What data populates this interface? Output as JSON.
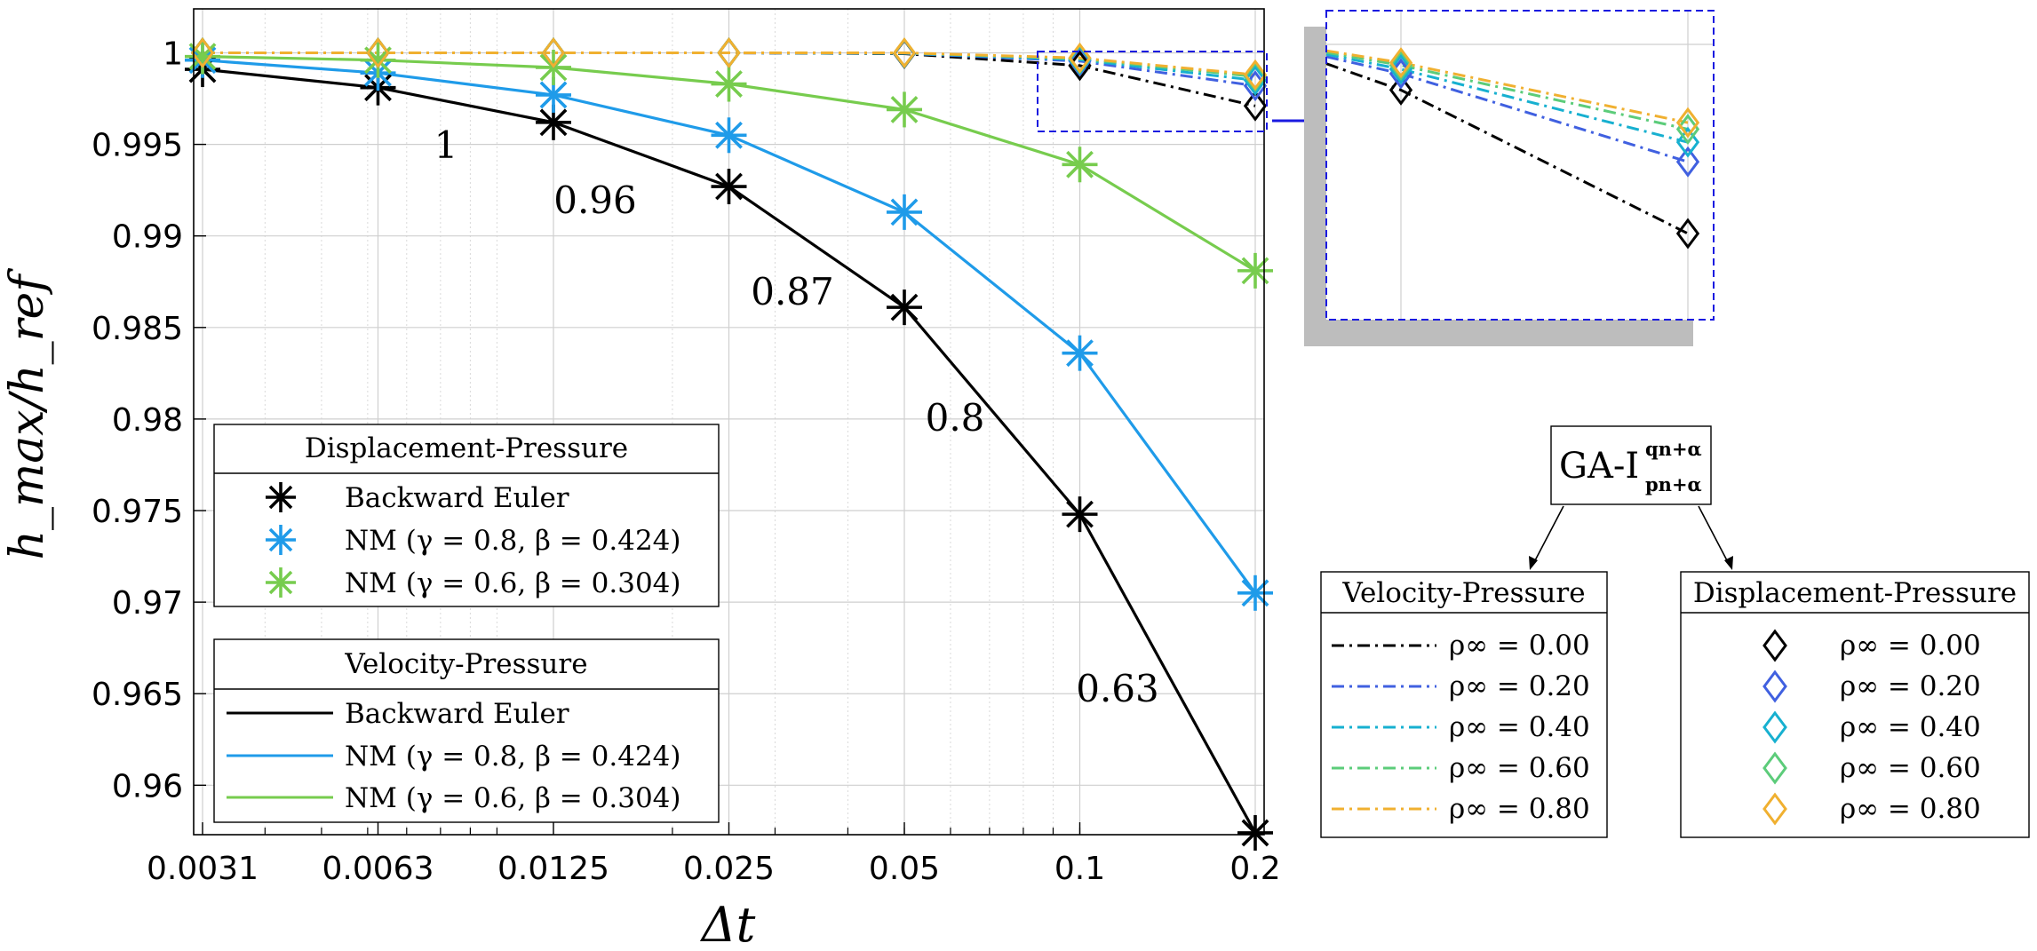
{
  "chart_data": {
    "type": "line",
    "xscale": "log",
    "xlabel": "Δt",
    "ylabel": "h_max/h_ref",
    "x_tick_labels": [
      "0.0031",
      "0.0063",
      "0.0125",
      "0.025",
      "0.05",
      "0.1",
      "0.2"
    ],
    "x": [
      0.003125,
      0.00625,
      0.0125,
      0.025,
      0.05,
      0.1,
      0.2
    ],
    "xlim": [
      0.003125,
      0.2
    ],
    "ylim": [
      0.9573,
      1.0024
    ],
    "y_tick_labels": [
      "1",
      "0.995",
      "0.99",
      "0.985",
      "0.98",
      "0.975",
      "0.97",
      "0.965",
      "0.96"
    ],
    "y_ticks": [
      1.0,
      0.995,
      0.99,
      0.985,
      0.98,
      0.975,
      0.97,
      0.965,
      0.96
    ],
    "grid": true,
    "series": [
      {
        "name": "Backward Euler",
        "group": "both",
        "color": "#000000",
        "marker": "asterisk",
        "values": [
          0.9991,
          0.9981,
          0.9962,
          0.9927,
          0.9861,
          0.9748,
          0.9574
        ]
      },
      {
        "name": "NM (γ = 0.8, β = 0.424)",
        "group": "both",
        "color": "#1f9be9",
        "marker": "asterisk",
        "values": [
          0.9996,
          0.9989,
          0.9977,
          0.9955,
          0.9913,
          0.9836,
          0.9705
        ]
      },
      {
        "name": "NM (γ = 0.6, β = 0.304)",
        "group": "both",
        "color": "#77cc4e",
        "marker": "asterisk",
        "values": [
          0.9998,
          0.9996,
          0.9992,
          0.9983,
          0.9969,
          0.9939,
          0.9881
        ]
      },
      {
        "name": "GA-I ρ∞ = 0.00",
        "group": "ga",
        "color": "#000000",
        "marker": "diamond",
        "values": [
          1.0,
          1.0,
          1.0,
          1.0,
          0.99995,
          0.9993,
          0.9971
        ]
      },
      {
        "name": "GA-I ρ∞ = 0.20",
        "group": "ga",
        "color": "#4060e0",
        "marker": "diamond",
        "values": [
          1.0,
          1.0,
          1.0,
          1.0,
          0.99997,
          0.99955,
          0.9982
        ]
      },
      {
        "name": "GA-I ρ∞ = 0.40",
        "group": "ga",
        "color": "#17b0d0",
        "marker": "diamond",
        "values": [
          1.0,
          1.0,
          1.0,
          1.0,
          0.99998,
          0.99962,
          0.9985
        ]
      },
      {
        "name": "GA-I ρ∞ = 0.60",
        "group": "ga",
        "color": "#5ccc7a",
        "marker": "diamond",
        "values": [
          1.0,
          1.0,
          1.0,
          1.0,
          0.99999,
          0.99968,
          0.9987
        ]
      },
      {
        "name": "GA-I ρ∞ = 0.80",
        "group": "ga",
        "color": "#f0b030",
        "marker": "diamond",
        "values": [
          1.0,
          1.0,
          1.0,
          1.0,
          1.0,
          0.99972,
          0.9988
        ]
      }
    ],
    "annotations": [
      {
        "text": "1"
      },
      {
        "text": "0.96"
      },
      {
        "text": "0.87"
      },
      {
        "text": "0.8"
      },
      {
        "text": "0.63"
      }
    ]
  },
  "legend_dp": {
    "title": "Displacement-Pressure",
    "items": [
      "Backward Euler",
      "NM (γ = 0.8, β = 0.424)",
      "NM (γ = 0.6, β = 0.304)"
    ]
  },
  "legend_vp": {
    "title": "Velocity-Pressure",
    "items": [
      "Backward Euler",
      "NM (γ = 0.8, β = 0.424)",
      "NM (γ = 0.6, β = 0.304)"
    ]
  },
  "ga_legend": {
    "root_label": "GA-I",
    "root_sup": "qn+α",
    "root_sub": "pn+α",
    "vp_title": "Velocity-Pressure",
    "dp_title": "Displacement-Pressure",
    "rho_label": "ρ∞ =",
    "rho_values": [
      "0.00",
      "0.20",
      "0.40",
      "0.60",
      "0.80"
    ]
  }
}
